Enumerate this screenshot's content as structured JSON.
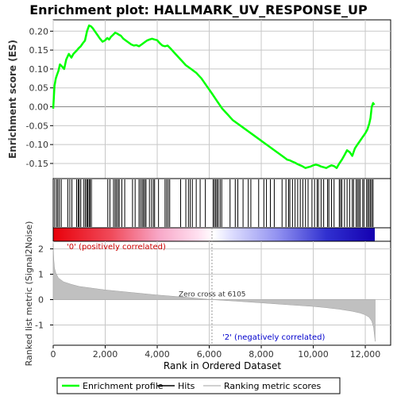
{
  "chart_data": {
    "type": "line",
    "title": "Enrichment plot: HALLMARK_UV_RESPONSE_UP",
    "panels": {
      "es": {
        "ylabel": "Enrichment score (ES)",
        "xlim": [
          0,
          12500
        ],
        "ylim": [
          -0.19,
          0.23
        ],
        "yticks": [
          -0.15,
          -0.1,
          -0.05,
          0.0,
          0.05,
          0.1,
          0.15,
          0.2
        ],
        "ytick_labels": [
          "-0.15",
          "-0.10",
          "-0.05",
          "0.00",
          "0.05",
          "0.10",
          "0.15",
          "0.20"
        ],
        "series": [
          {
            "name": "Enrichment profile",
            "color": "#00ff00",
            "x": [
              0,
              50,
              100,
              150,
              200,
              260,
              320,
              420,
              500,
              600,
              700,
              780,
              850,
              920,
              980,
              1060,
              1140,
              1220,
              1300,
              1380,
              1450,
              1520,
              1600,
              1700,
              1800,
              1900,
              2000,
              2080,
              2150,
              2220,
              2300,
              2380,
              2450,
              2520,
              2600,
              2700,
              2800,
              2900,
              3000,
              3100,
              3200,
              3300,
              3400,
              3500,
              3600,
              3700,
              3800,
              3900,
              4000,
              4100,
              4200,
              4300,
              4400,
              4500,
              4700,
              4900,
              5100,
              5300,
              5500,
              5700,
              5900,
              6105,
              6300,
              6500,
              6700,
              6900,
              7100,
              7300,
              7500,
              7700,
              7900,
              8100,
              8300,
              8500,
              8700,
              8900,
              9000,
              9100,
              9200,
              9300,
              9400,
              9500,
              9600,
              9700,
              9800,
              9900,
              10000,
              10100,
              10200,
              10300,
              10400,
              10500,
              10600,
              10700,
              10800,
              10900,
              11000,
              11100,
              11200,
              11300,
              11400,
              11500,
              11600,
              11700,
              11800,
              11900,
              12000,
              12080,
              12150,
              12200,
              12250,
              12300,
              12350
            ],
            "y": [
              -0.005,
              0.055,
              0.075,
              0.085,
              0.095,
              0.112,
              0.108,
              0.1,
              0.125,
              0.14,
              0.13,
              0.14,
              0.145,
              0.15,
              0.155,
              0.16,
              0.168,
              0.175,
              0.2,
              0.215,
              0.213,
              0.208,
              0.2,
              0.19,
              0.18,
              0.172,
              0.176,
              0.182,
              0.178,
              0.185,
              0.19,
              0.196,
              0.194,
              0.191,
              0.188,
              0.18,
              0.175,
              0.17,
              0.165,
              0.162,
              0.163,
              0.16,
              0.165,
              0.17,
              0.175,
              0.178,
              0.18,
              0.178,
              0.176,
              0.168,
              0.162,
              0.16,
              0.162,
              0.155,
              0.14,
              0.125,
              0.11,
              0.1,
              0.09,
              0.075,
              0.055,
              0.035,
              0.015,
              -0.005,
              -0.02,
              -0.035,
              -0.045,
              -0.055,
              -0.065,
              -0.075,
              -0.085,
              -0.095,
              -0.105,
              -0.115,
              -0.125,
              -0.135,
              -0.14,
              -0.142,
              -0.145,
              -0.148,
              -0.152,
              -0.155,
              -0.158,
              -0.162,
              -0.16,
              -0.158,
              -0.155,
              -0.153,
              -0.155,
              -0.158,
              -0.16,
              -0.162,
              -0.158,
              -0.155,
              -0.157,
              -0.162,
              -0.15,
              -0.14,
              -0.128,
              -0.115,
              -0.12,
              -0.13,
              -0.11,
              -0.1,
              -0.09,
              -0.08,
              -0.07,
              -0.06,
              -0.045,
              -0.03,
              0.0,
              0.01,
              0.005
            ]
          }
        ]
      },
      "hits": {
        "series_name": "Hits",
        "positions": [
          60,
          130,
          180,
          240,
          310,
          560,
          640,
          720,
          900,
          960,
          1000,
          1060,
          1180,
          1240,
          1290,
          1330,
          1380,
          1420,
          1470,
          2100,
          2180,
          2320,
          2380,
          2430,
          2490,
          2540,
          2640,
          2750,
          3050,
          3150,
          3300,
          3360,
          3420,
          3470,
          3520,
          3570,
          3700,
          3780,
          3850,
          3900,
          4050,
          4300,
          4360,
          4420,
          4480,
          4900,
          5100,
          5200,
          5270,
          5350,
          5500,
          5650,
          5850,
          6150,
          6200,
          6250,
          6300,
          6350,
          6420,
          6480,
          6800,
          7000,
          7100,
          7300,
          7500,
          7600,
          7900,
          8100,
          8200,
          8350,
          8500,
          8800,
          8950,
          9050,
          9100,
          9200,
          9300,
          9400,
          9500,
          9600,
          9700,
          9800,
          9950,
          10050,
          10150,
          10200,
          10300,
          10400,
          10550,
          10600,
          10700,
          10800,
          11000,
          11050,
          11100,
          11200,
          11300,
          11400,
          11500,
          11550,
          11650,
          11700,
          11750,
          11800,
          11900,
          11950,
          12050,
          12100,
          12150,
          12200,
          12250,
          12300
        ]
      },
      "metric": {
        "ylabel": "Ranked list metric (Signal2Noise)",
        "series_name": "Ranking metric scores",
        "color": "#c0c0c0",
        "ylim": [
          -1.8,
          2.3
        ],
        "yticks": [
          -1,
          0,
          1,
          2
        ],
        "ytick_labels": [
          "-1",
          "0",
          "1",
          "2"
        ],
        "x": [
          0,
          20,
          50,
          100,
          200,
          400,
          700,
          1000,
          1500,
          2000,
          3000,
          4000,
          5000,
          6105,
          7000,
          8000,
          9000,
          10000,
          10500,
          11000,
          11500,
          11800,
          12000,
          12150,
          12250,
          12320,
          12380
        ],
        "y": [
          2.2,
          1.6,
          1.25,
          1.05,
          0.85,
          0.7,
          0.6,
          0.52,
          0.45,
          0.38,
          0.28,
          0.18,
          0.1,
          0.0,
          -0.06,
          -0.13,
          -0.2,
          -0.27,
          -0.32,
          -0.38,
          -0.46,
          -0.53,
          -0.6,
          -0.7,
          -0.85,
          -1.1,
          -1.65
        ],
        "zero_cross_label": "Zero cross at 6105",
        "zero_cross_x": 6105,
        "pos_label": "'0' (positively correlated)",
        "neg_label": "'2' (negatively correlated)"
      }
    },
    "xlabel": "Rank in Ordered Dataset",
    "xticks": [
      0,
      2000,
      4000,
      6000,
      8000,
      10000,
      12000
    ],
    "xtick_labels": [
      "0",
      "2,000",
      "4,000",
      "6,000",
      "8,000",
      "10,000",
      "12,000"
    ],
    "legend": {
      "placement": "bottom",
      "items": [
        {
          "label": "Enrichment profile",
          "color": "#00ff00",
          "style": "line"
        },
        {
          "label": "Hits",
          "color": "#000000",
          "style": "line"
        },
        {
          "label": "Ranking metric scores",
          "color": "#c0c0c0",
          "style": "line"
        }
      ]
    },
    "colors": {
      "profile": "#00ff00",
      "hits": "#000000",
      "metric_fill": "#c0c0c0",
      "grid": "#c8c8c8",
      "zero_line": "#888888",
      "pos_label": "#cc0000",
      "neg_label": "#0000cc"
    }
  }
}
